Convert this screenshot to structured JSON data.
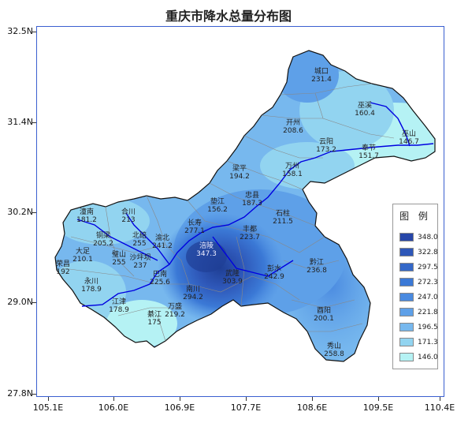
{
  "title": "重庆市降水总量分布图",
  "y_ticks": [
    "32.5N",
    "31.4N",
    "30.2N",
    "29.0N",
    "27.8N"
  ],
  "x_ticks": [
    "105.1E",
    "106.0E",
    "106.9E",
    "107.7E",
    "108.6E",
    "109.5E",
    "110.4E"
  ],
  "legend": {
    "title": "图 例",
    "levels": [
      {
        "value": "348.0",
        "color": "#2746a8"
      },
      {
        "value": "322.8",
        "color": "#2e57b8"
      },
      {
        "value": "297.5",
        "color": "#3468c8"
      },
      {
        "value": "272.3",
        "color": "#3b79d6"
      },
      {
        "value": "247.0",
        "color": "#4a8ae0"
      },
      {
        "value": "221.8",
        "color": "#5ea0e8"
      },
      {
        "value": "196.5",
        "color": "#77b8ee"
      },
      {
        "value": "171.3",
        "color": "#92d4f0"
      },
      {
        "value": "146.0",
        "color": "#b5f2f4"
      }
    ]
  },
  "stations": [
    {
      "name": "城口",
      "value": "231.4"
    },
    {
      "name": "巫溪",
      "value": "160.4"
    },
    {
      "name": "巫山",
      "value": "146.7"
    },
    {
      "name": "开州",
      "value": "208.6"
    },
    {
      "name": "云阳",
      "value": "173.2"
    },
    {
      "name": "奉节",
      "value": "151.7"
    },
    {
      "name": "万州",
      "value": "158.1"
    },
    {
      "name": "梁平",
      "value": "194.2"
    },
    {
      "name": "忠县",
      "value": "187.3"
    },
    {
      "name": "垫江",
      "value": "156.2"
    },
    {
      "name": "石柱",
      "value": "211.5"
    },
    {
      "name": "潼南",
      "value": "181.2"
    },
    {
      "name": "合川",
      "value": "213"
    },
    {
      "name": "长寿",
      "value": "277.1"
    },
    {
      "name": "丰都",
      "value": "223.7"
    },
    {
      "name": "铜梁",
      "value": "205.2"
    },
    {
      "name": "大足",
      "value": "210.1"
    },
    {
      "name": "北碚",
      "value": "255"
    },
    {
      "name": "渝北",
      "value": "241.2"
    },
    {
      "name": "璧山",
      "value": "255"
    },
    {
      "name": "沙坪坝",
      "value": "237"
    },
    {
      "name": "荣昌",
      "value": ""
    },
    {
      "name": "涪陵",
      "value": "347.3"
    },
    {
      "name": "武隆",
      "value": "303.9"
    },
    {
      "name": "永川",
      "value": "178.9"
    },
    {
      "name": "巴南",
      "value": "225.6"
    },
    {
      "name": "南川",
      "value": "294.2"
    },
    {
      "name": "彭水",
      "value": "242.9"
    },
    {
      "name": "黔江",
      "value": "236.8"
    },
    {
      "name": "荣昌",
      "value": "192"
    },
    {
      "name": "江津",
      "value": "178.9"
    },
    {
      "name": "綦江",
      "value": "175"
    },
    {
      "name": "万盛",
      "value": "219.2"
    },
    {
      "name": "酉阳",
      "value": "200.1"
    },
    {
      "name": "秀山",
      "value": "258.8"
    }
  ]
}
